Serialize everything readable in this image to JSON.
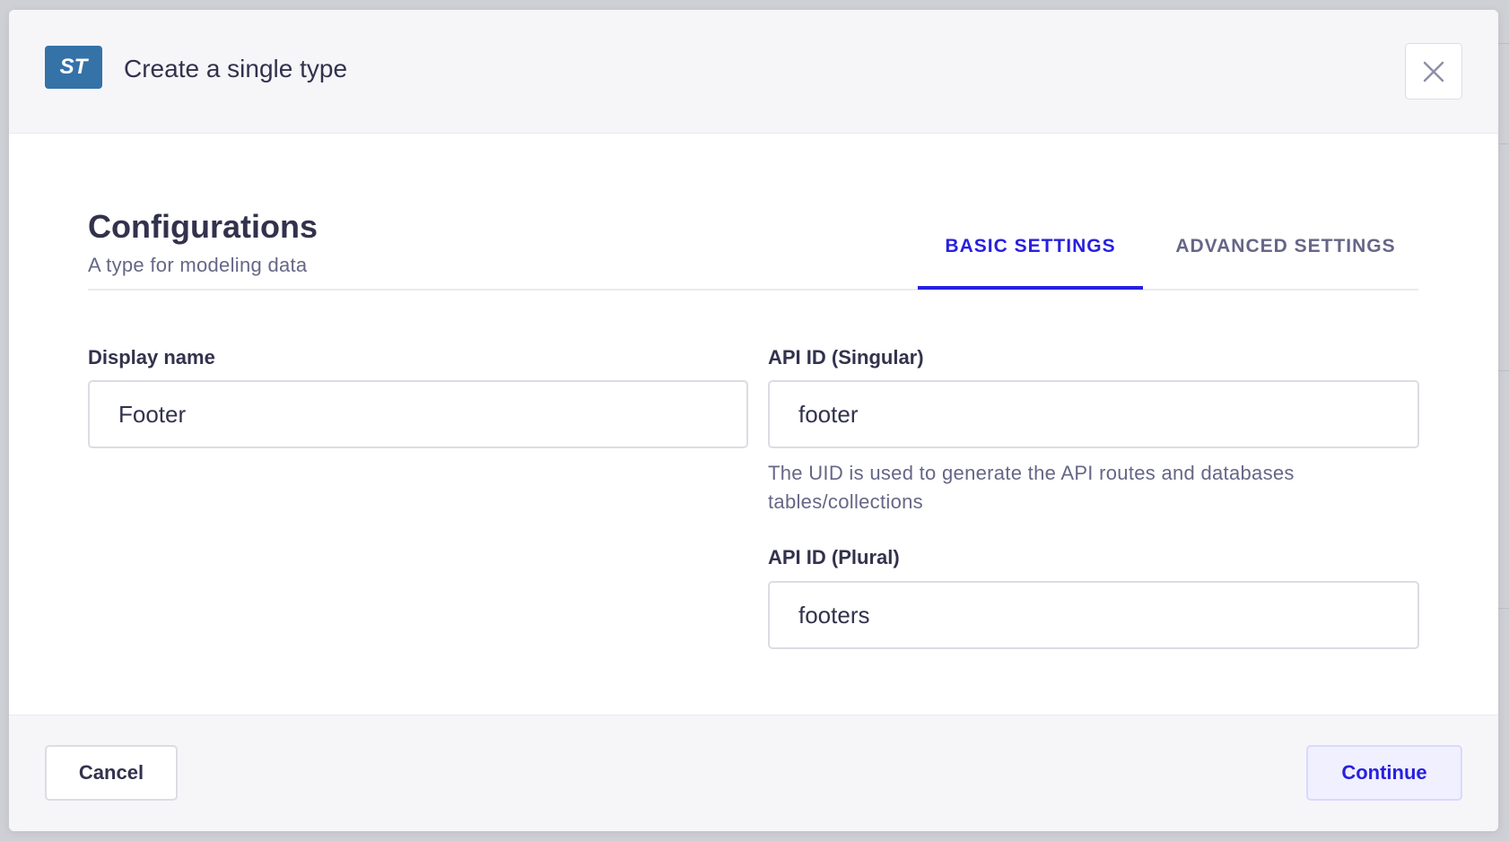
{
  "modal": {
    "badge": "ST",
    "title": "Create a single type",
    "close_icon": "close-icon"
  },
  "section": {
    "heading": "Configurations",
    "subtitle": "A type for modeling data"
  },
  "tabs": [
    {
      "label": "BASIC SETTINGS",
      "active": true
    },
    {
      "label": "ADVANCED SETTINGS",
      "active": false
    }
  ],
  "fields": {
    "display_name": {
      "label": "Display name",
      "value": "Footer"
    },
    "api_singular": {
      "label": "API ID (Singular)",
      "value": "footer",
      "help": "The UID is used to generate the API routes and databases tables/collections"
    },
    "api_plural": {
      "label": "API ID (Plural)",
      "value": "footers"
    }
  },
  "footer": {
    "cancel_label": "Cancel",
    "continue_label": "Continue"
  },
  "colors": {
    "accent": "#271fe0",
    "badge": "#3572a8"
  }
}
